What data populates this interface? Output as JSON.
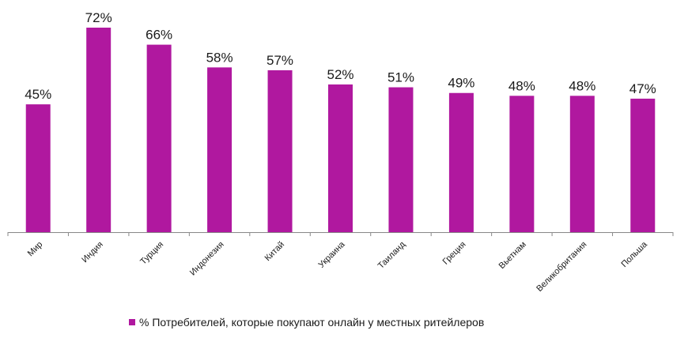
{
  "chart_data": {
    "type": "bar",
    "categories": [
      "Мир",
      "Индия",
      "Турция",
      "Индонезия",
      "Китай",
      "Украина",
      "Таиланд",
      "Греция",
      "Вьетнам",
      "Великобритания",
      "Польша"
    ],
    "series": [
      {
        "name": "% Потребителей, которые покупают онлайн у местных ритейлеров",
        "values": [
          45,
          72,
          66,
          58,
          57,
          52,
          51,
          49,
          48,
          48,
          47
        ],
        "labels": [
          "45%",
          "72%",
          "66%",
          "58%",
          "57%",
          "52%",
          "51%",
          "49%",
          "48%",
          "48%",
          "47%"
        ]
      }
    ],
    "ylim": [
      0,
      72
    ],
    "grid": false,
    "legend": "bottom",
    "bar_color": "#b0189f"
  },
  "legend": {
    "label": "% Потребителей, которые покупают онлайн у местных ритейлеров"
  }
}
